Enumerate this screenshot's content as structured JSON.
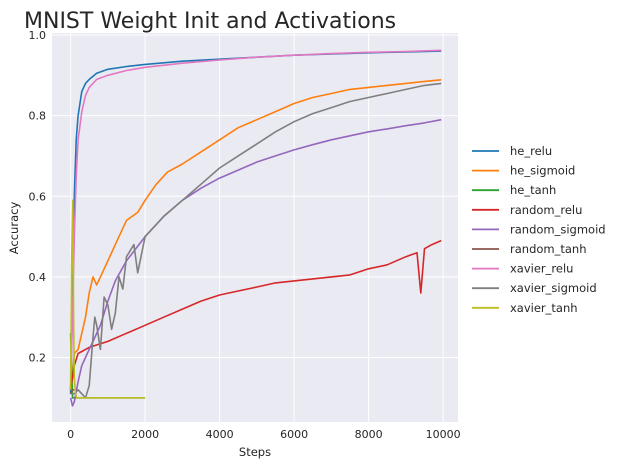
{
  "chart_data": {
    "type": "line",
    "title": "MNIST Weight Init and Activations",
    "xlabel": "Steps",
    "ylabel": "Accuracy",
    "xlim": [
      -500,
      10400
    ],
    "ylim": [
      0.04,
      1.005
    ],
    "xticks": [
      0,
      2000,
      4000,
      6000,
      8000,
      10000
    ],
    "yticks": [
      0.2,
      0.4,
      0.6,
      0.8,
      1.0
    ],
    "xtick_labels": [
      "0",
      "2000",
      "4000",
      "6000",
      "8000",
      "10000"
    ],
    "ytick_labels": [
      "0.2",
      "0.4",
      "0.6",
      "0.8",
      "1.0"
    ],
    "grid": true,
    "legend_position": "right",
    "series": [
      {
        "name": "he_relu",
        "color": "#1f77b4",
        "x": [
          0,
          50,
          100,
          150,
          200,
          300,
          400,
          500,
          700,
          1000,
          1500,
          2000,
          3000,
          4000,
          5000,
          6000,
          7000,
          8000,
          9000,
          9950
        ],
        "y": [
          0.11,
          0.35,
          0.6,
          0.74,
          0.8,
          0.86,
          0.88,
          0.89,
          0.905,
          0.915,
          0.922,
          0.927,
          0.935,
          0.94,
          0.945,
          0.95,
          0.953,
          0.956,
          0.958,
          0.96
        ]
      },
      {
        "name": "he_sigmoid",
        "color": "#ff7f0e",
        "x": [
          0,
          50,
          100,
          200,
          300,
          400,
          500,
          600,
          700,
          800,
          1000,
          1200,
          1500,
          1800,
          2000,
          2300,
          2600,
          3000,
          3500,
          4000,
          4500,
          5000,
          5500,
          6000,
          6500,
          7000,
          7500,
          8000,
          8500,
          9000,
          9500,
          9950
        ],
        "y": [
          0.13,
          0.15,
          0.21,
          0.22,
          0.26,
          0.3,
          0.36,
          0.4,
          0.38,
          0.4,
          0.44,
          0.48,
          0.54,
          0.56,
          0.59,
          0.63,
          0.66,
          0.68,
          0.71,
          0.74,
          0.77,
          0.79,
          0.81,
          0.83,
          0.845,
          0.855,
          0.865,
          0.87,
          0.875,
          0.88,
          0.885,
          0.889
        ]
      },
      {
        "name": "he_tanh",
        "color": "#2ca02c",
        "x": [
          0,
          50,
          100,
          500,
          1000,
          1500,
          2000
        ],
        "y": [
          0.26,
          0.1,
          0.1,
          0.1,
          0.1,
          0.1,
          0.1
        ]
      },
      {
        "name": "random_relu",
        "color": "#d62728",
        "x": [
          0,
          100,
          200,
          500,
          1000,
          1500,
          2000,
          2500,
          3000,
          3500,
          4000,
          4500,
          5000,
          5500,
          6000,
          6500,
          7000,
          7500,
          8000,
          8500,
          9000,
          9300,
          9400,
          9500,
          9700,
          9950
        ],
        "y": [
          0.12,
          0.18,
          0.21,
          0.225,
          0.24,
          0.26,
          0.28,
          0.3,
          0.32,
          0.34,
          0.355,
          0.365,
          0.375,
          0.385,
          0.39,
          0.395,
          0.4,
          0.405,
          0.42,
          0.43,
          0.45,
          0.46,
          0.36,
          0.47,
          0.48,
          0.49
        ]
      },
      {
        "name": "random_sigmoid",
        "color": "#9467bd",
        "x": [
          0,
          50,
          100,
          200,
          300,
          400,
          500,
          600,
          800,
          1000,
          1200,
          1500,
          2000,
          2500,
          3000,
          3500,
          4000,
          4500,
          5000,
          5500,
          6000,
          6500,
          7000,
          7500,
          8000,
          8500,
          9000,
          9500,
          9950
        ],
        "y": [
          0.1,
          0.08,
          0.09,
          0.14,
          0.18,
          0.2,
          0.22,
          0.24,
          0.28,
          0.34,
          0.39,
          0.44,
          0.5,
          0.55,
          0.59,
          0.62,
          0.645,
          0.665,
          0.685,
          0.7,
          0.715,
          0.728,
          0.74,
          0.75,
          0.76,
          0.767,
          0.775,
          0.782,
          0.79
        ]
      },
      {
        "name": "random_tanh",
        "color": "#8c564b",
        "x": [
          0,
          50,
          100
        ],
        "y": [
          0.11,
          0.12,
          0.12
        ]
      },
      {
        "name": "xavier_relu",
        "color": "#e377c2",
        "x": [
          0,
          50,
          100,
          150,
          200,
          300,
          400,
          500,
          700,
          1000,
          1500,
          2000,
          3000,
          4000,
          5000,
          6000,
          7000,
          8000,
          9000,
          9950
        ],
        "y": [
          0.12,
          0.3,
          0.5,
          0.65,
          0.74,
          0.81,
          0.85,
          0.87,
          0.89,
          0.9,
          0.912,
          0.92,
          0.93,
          0.938,
          0.945,
          0.95,
          0.954,
          0.957,
          0.959,
          0.962
        ]
      },
      {
        "name": "xavier_sigmoid",
        "color": "#7f7f7f",
        "x": [
          0,
          100,
          200,
          300,
          400,
          500,
          600,
          650,
          700,
          800,
          900,
          1000,
          1100,
          1200,
          1300,
          1400,
          1500,
          1700,
          1800,
          2000,
          2200,
          2500,
          3000,
          3500,
          4000,
          4500,
          5000,
          5500,
          6000,
          6500,
          7000,
          7500,
          8000,
          8500,
          9000,
          9500,
          9950
        ],
        "y": [
          0.11,
          0.11,
          0.12,
          0.11,
          0.1,
          0.13,
          0.25,
          0.3,
          0.28,
          0.22,
          0.35,
          0.33,
          0.27,
          0.31,
          0.4,
          0.37,
          0.45,
          0.48,
          0.41,
          0.5,
          0.52,
          0.55,
          0.59,
          0.63,
          0.67,
          0.7,
          0.73,
          0.76,
          0.785,
          0.805,
          0.82,
          0.835,
          0.845,
          0.855,
          0.865,
          0.875,
          0.88
        ]
      },
      {
        "name": "xavier_tanh",
        "color": "#bcbd22",
        "x": [
          0,
          30,
          60,
          80,
          100,
          130,
          160,
          200,
          400,
          700,
          1000,
          1500,
          2000
        ],
        "y": [
          0.12,
          0.45,
          0.59,
          0.3,
          0.15,
          0.11,
          0.1,
          0.1,
          0.1,
          0.1,
          0.1,
          0.1,
          0.1
        ]
      }
    ]
  }
}
